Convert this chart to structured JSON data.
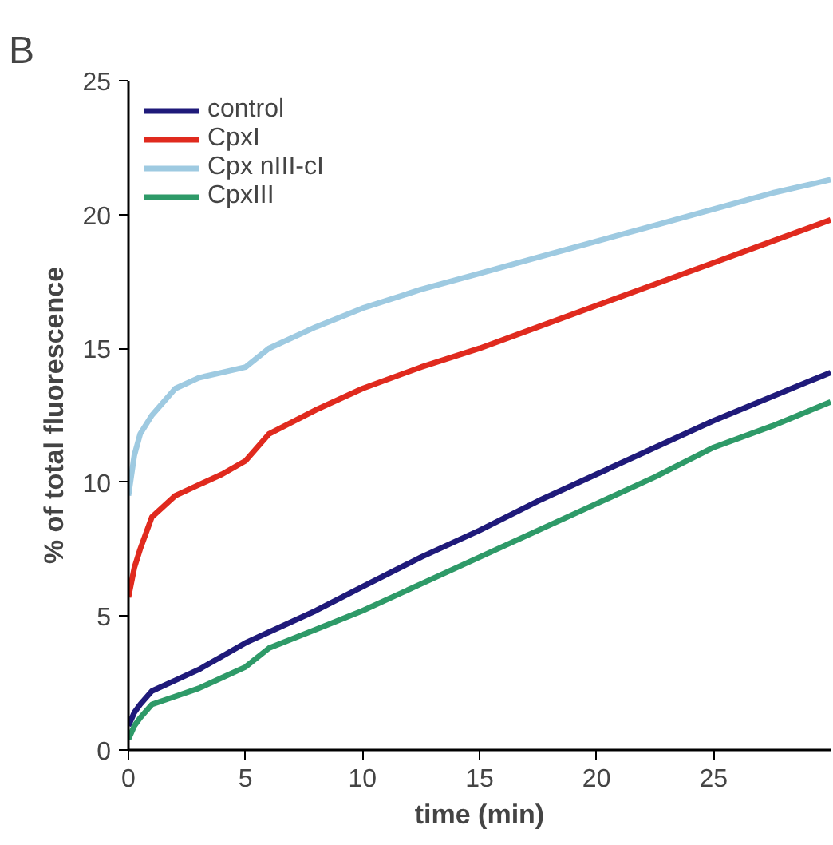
{
  "chart_data": {
    "type": "line",
    "xlabel": "time (min)",
    "ylabel": "% of total fluorescence",
    "annotations": [
      "B"
    ],
    "x": [
      0,
      0.25,
      0.5,
      1,
      2,
      3,
      4,
      5,
      6,
      8,
      10,
      12.5,
      15,
      17.5,
      20,
      22.5,
      25,
      27.5,
      30
    ],
    "series": [
      {
        "name": "control",
        "color": "#1f1a7a",
        "values": [
          0.9,
          1.4,
          1.7,
          2.2,
          2.6,
          3.0,
          3.5,
          4.0,
          4.4,
          5.2,
          6.1,
          7.2,
          8.2,
          9.3,
          10.3,
          11.3,
          12.3,
          13.2,
          14.1
        ]
      },
      {
        "name": "CpxI",
        "color": "#e02a1e",
        "values": [
          5.7,
          6.8,
          7.5,
          8.7,
          9.5,
          9.9,
          10.3,
          10.8,
          11.8,
          12.7,
          13.5,
          14.3,
          15.0,
          15.8,
          16.6,
          17.4,
          18.2,
          19.0,
          19.8
        ]
      },
      {
        "name": "Cpx nIII-cI",
        "color": "#9ecae1",
        "values": [
          9.5,
          11.0,
          11.8,
          12.5,
          13.5,
          13.9,
          14.1,
          14.3,
          15.0,
          15.8,
          16.5,
          17.2,
          17.8,
          18.4,
          19.0,
          19.6,
          20.2,
          20.8,
          21.3
        ]
      },
      {
        "name": "CpxIII",
        "color": "#2e9a68",
        "values": [
          0.4,
          0.9,
          1.2,
          1.7,
          2.0,
          2.3,
          2.7,
          3.1,
          3.8,
          4.5,
          5.2,
          6.2,
          7.2,
          8.2,
          9.2,
          10.2,
          11.3,
          12.1,
          13.0
        ]
      }
    ],
    "xlim": [
      0,
      30
    ],
    "xticks": [
      0,
      5,
      10,
      15,
      20,
      25
    ],
    "ylim": [
      0,
      25
    ],
    "yticks": [
      0,
      5,
      10,
      15,
      20,
      25
    ],
    "grid": false,
    "legend": "top left"
  }
}
